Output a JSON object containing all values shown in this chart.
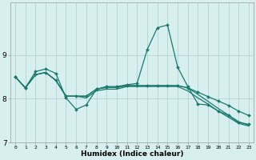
{
  "xlabel": "Humidex (Indice chaleur)",
  "background_color": "#d8efef",
  "grid_color": "#b8d8d8",
  "line_color": "#1a7a6e",
  "x_values": [
    0,
    1,
    2,
    3,
    4,
    5,
    6,
    7,
    8,
    9,
    10,
    11,
    12,
    13,
    14,
    15,
    16,
    17,
    18,
    19,
    20,
    21,
    22,
    23
  ],
  "line1": [
    8.5,
    8.25,
    8.62,
    8.68,
    8.58,
    8.02,
    7.76,
    7.86,
    8.22,
    8.28,
    8.28,
    8.32,
    8.35,
    9.12,
    9.62,
    9.68,
    8.72,
    8.28,
    7.88,
    7.86,
    7.72,
    7.62,
    7.46,
    7.42
  ],
  "line2": [
    8.5,
    8.25,
    8.55,
    8.6,
    8.42,
    8.06,
    8.06,
    8.06,
    8.22,
    8.26,
    8.26,
    8.3,
    8.3,
    8.3,
    8.3,
    8.3,
    8.3,
    8.25,
    8.15,
    8.05,
    7.95,
    7.85,
    7.72,
    7.62
  ],
  "line3": [
    8.5,
    8.25,
    8.55,
    8.6,
    8.42,
    8.06,
    8.06,
    8.06,
    8.22,
    8.26,
    8.26,
    8.3,
    8.3,
    8.3,
    8.3,
    8.3,
    8.3,
    8.25,
    8.1,
    7.94,
    7.78,
    7.63,
    7.48,
    7.4
  ],
  "line4": [
    8.5,
    8.25,
    8.55,
    8.6,
    8.42,
    8.06,
    8.06,
    8.02,
    8.18,
    8.22,
    8.22,
    8.28,
    8.28,
    8.28,
    8.28,
    8.28,
    8.28,
    8.18,
    8.02,
    7.88,
    7.72,
    7.58,
    7.44,
    7.38
  ],
  "ylim": [
    7.0,
    10.2
  ],
  "yticks": [
    7,
    8,
    9
  ],
  "xticks": [
    0,
    1,
    2,
    3,
    4,
    5,
    6,
    7,
    8,
    9,
    10,
    11,
    12,
    13,
    14,
    15,
    16,
    17,
    18,
    19,
    20,
    21,
    22,
    23
  ]
}
